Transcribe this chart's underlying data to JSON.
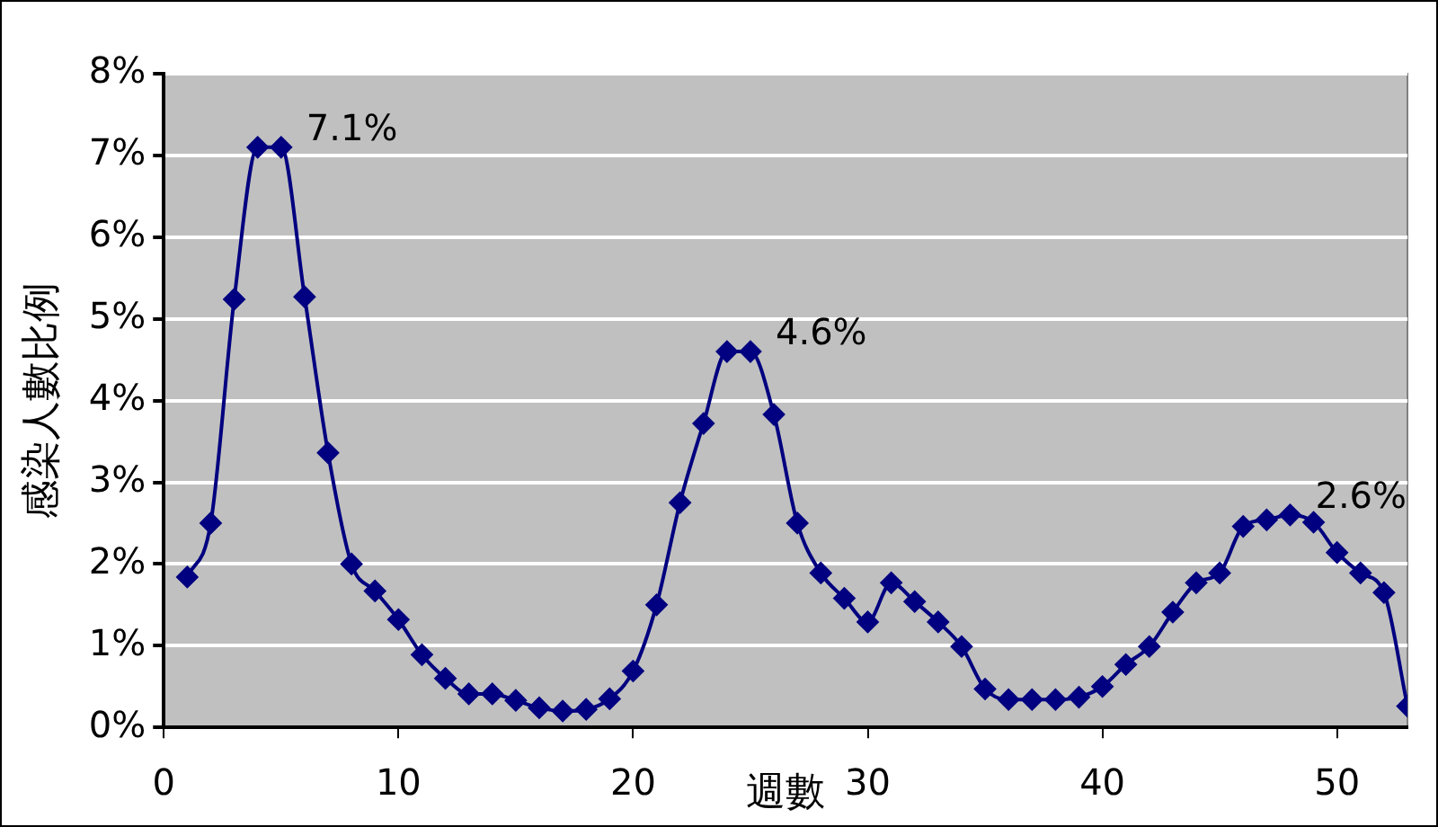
{
  "chart_data": {
    "type": "line",
    "xlabel": "週數",
    "ylabel": "感染人數比例",
    "x": [
      1,
      2,
      3,
      4,
      5,
      6,
      7,
      8,
      9,
      10,
      11,
      12,
      13,
      14,
      15,
      16,
      17,
      18,
      19,
      20,
      21,
      22,
      23,
      24,
      25,
      26,
      27,
      28,
      29,
      30,
      31,
      32,
      33,
      34,
      35,
      36,
      37,
      38,
      39,
      40,
      41,
      42,
      43,
      44,
      45,
      46,
      47,
      48,
      49,
      50,
      51,
      52,
      53
    ],
    "series": [
      {
        "color": "#000080",
        "values": [
          1.84,
          2.5,
          5.24,
          7.1,
          7.1,
          5.27,
          3.36,
          2.0,
          1.67,
          1.32,
          0.89,
          0.6,
          0.41,
          0.41,
          0.33,
          0.24,
          0.2,
          0.22,
          0.35,
          0.69,
          1.5,
          2.75,
          3.72,
          4.6,
          4.6,
          3.83,
          2.5,
          1.89,
          1.58,
          1.29,
          1.77,
          1.54,
          1.29,
          0.99,
          0.47,
          0.34,
          0.34,
          0.34,
          0.37,
          0.5,
          0.77,
          0.99,
          1.41,
          1.77,
          1.89,
          2.46,
          2.54,
          2.6,
          2.51,
          2.14,
          1.89,
          1.65,
          0.26
        ]
      }
    ],
    "xlim": [
      0,
      53
    ],
    "xticks": [
      0,
      10,
      20,
      30,
      40,
      50
    ],
    "ylim": [
      0,
      8
    ],
    "yticks": [
      {
        "value": 0,
        "label": "0%"
      },
      {
        "value": 1,
        "label": "1%"
      },
      {
        "value": 2,
        "label": "2%"
      },
      {
        "value": 3,
        "label": "3%"
      },
      {
        "value": 4,
        "label": "4%"
      },
      {
        "value": 5,
        "label": "5%"
      },
      {
        "value": 6,
        "label": "6%"
      },
      {
        "value": 7,
        "label": "7%"
      },
      {
        "value": 8,
        "label": "8%"
      }
    ],
    "grid": "y",
    "legend": false,
    "marker": "diamond",
    "line_style": "solid",
    "annotations": [
      {
        "text": "7.1%",
        "x": 5,
        "y": 7.1
      },
      {
        "text": "4.6%",
        "x": 25,
        "y": 4.6
      },
      {
        "text": "2.6%",
        "x": 48,
        "y": 2.6
      }
    ]
  }
}
